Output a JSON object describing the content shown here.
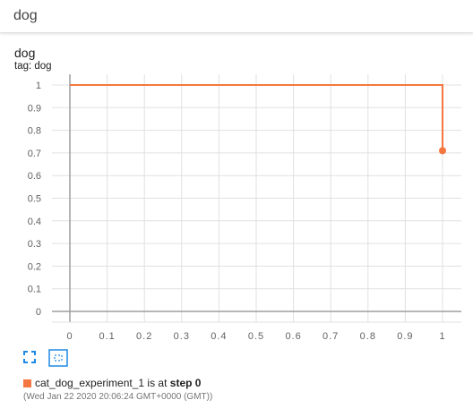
{
  "header": {
    "title": "dog"
  },
  "card": {
    "title": "dog",
    "tag": "tag: dog"
  },
  "controls": [
    {
      "name": "expand-icon"
    },
    {
      "name": "fit-domain-icon"
    }
  ],
  "status": {
    "run_name": "cat_dog_experiment_1",
    "middle": " is at ",
    "step_label": "step 0",
    "timestamp": "(Wed Jan 22 2020 20:06:24 GMT+0000 (GMT))",
    "color": "#f4773f"
  },
  "colors": {
    "series": "#f4773f",
    "axis": "#9e9e9e",
    "grid": "#e0e0e0",
    "icon": "#1e88e5"
  },
  "chart_data": {
    "type": "line",
    "title": "dog",
    "xlim": [
      0,
      1
    ],
    "ylim": [
      0,
      1
    ],
    "x_ticks": [
      "0",
      "0.1",
      "0.2",
      "0.3",
      "0.4",
      "0.5",
      "0.6",
      "0.7",
      "0.8",
      "0.9",
      "1"
    ],
    "y_ticks": [
      "0",
      "0.1",
      "0.2",
      "0.3",
      "0.4",
      "0.5",
      "0.6",
      "0.7",
      "0.8",
      "0.9",
      "1"
    ],
    "grid": true,
    "series": [
      {
        "color": "#f4773f",
        "x": [
          0,
          1,
          1
        ],
        "y": [
          1,
          1,
          0.71
        ]
      }
    ]
  }
}
